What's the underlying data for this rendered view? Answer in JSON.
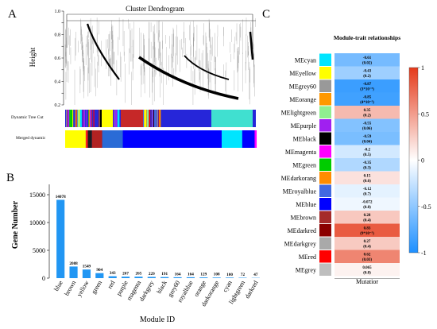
{
  "panels": {
    "a_label": "A",
    "b_label": "B",
    "c_label": "C"
  },
  "dendrogram": {
    "title": "Cluster Dendrogram",
    "ylabel": "Height",
    "yticks": [
      "1.0",
      "0.9",
      "0.8",
      "0.7",
      "0.6",
      "0.5",
      "0.4",
      "0.3",
      "0.2"
    ],
    "row1_label": "Dynamic Tree Cut",
    "row2_label": "Merged dynamic"
  },
  "chart_data": [
    {
      "type": "bar",
      "panel": "B",
      "xlabel": "Module ID",
      "ylabel": "Gene Number",
      "ylim": [
        0,
        16000
      ],
      "yticks": [
        0,
        5000,
        10000,
        15000
      ],
      "categories": [
        "blue",
        "brown",
        "yellow",
        "green",
        "red",
        "purple",
        "magenta",
        "darkgrey",
        "black",
        "grey60",
        "royalblue",
        "orange",
        "darkorange",
        "cyan",
        "lightgreen",
        "darkred"
      ],
      "values": [
        14078,
        2088,
        1549,
        904,
        343,
        267,
        265,
        229,
        191,
        164,
        164,
        129,
        108,
        100,
        72,
        47
      ],
      "bar_color": "#2196f3"
    },
    {
      "type": "heatmap",
      "panel": "C",
      "title": "Module-trait relationships",
      "xlabel": "Mutatior",
      "colorbar": {
        "min": -1,
        "max": 1,
        "ticks": [
          "1",
          "0.5",
          "0",
          "-0.5",
          "-1"
        ]
      },
      "rows": [
        {
          "module": "MEcyan",
          "swatch": "#00e5ff",
          "r": -0.61,
          "p": "(0.02)"
        },
        {
          "module": "MEyellow",
          "swatch": "#ffff00",
          "r": -0.43,
          "p": "(0.2)"
        },
        {
          "module": "MEgrey60",
          "swatch": "#999999",
          "r": -0.87,
          "p": "(3*10^-5)"
        },
        {
          "module": "MEorange",
          "swatch": "#ff9800",
          "r": -0.85,
          "p": "(4*10^-5)"
        },
        {
          "module": "MElightgreen",
          "swatch": "#90ee90",
          "r": 0.35,
          "p": "(0.2)"
        },
        {
          "module": "MEpurple",
          "swatch": "#a020f0",
          "r": -0.55,
          "p": "(0.06)"
        },
        {
          "module": "MEblack",
          "swatch": "#000000",
          "r": -0.59,
          "p": "(0.04)"
        },
        {
          "module": "MEmagenta",
          "swatch": "#ff00ff",
          "r": -0.2,
          "p": "(0.5)"
        },
        {
          "module": "MEgreen",
          "swatch": "#00cc00",
          "r": -0.35,
          "p": "(0.3)"
        },
        {
          "module": "MEdarkorang",
          "swatch": "#ff8c00",
          "r": 0.15,
          "p": "(0.6)"
        },
        {
          "module": "MEroyalblue",
          "swatch": "#4169e1",
          "r": -0.12,
          "p": "(0.7)"
        },
        {
          "module": "MEblue",
          "swatch": "#0000ff",
          "r": -0.072,
          "p": "(0.8)"
        },
        {
          "module": "MEbrown",
          "swatch": "#a52a2a",
          "r": 0.28,
          "p": "(0.4)"
        },
        {
          "module": "MEdarkred",
          "swatch": "#8b0000",
          "r": 0.83,
          "p": "(9*10^-5)"
        },
        {
          "module": "MEdarkgrey",
          "swatch": "#a9a9a9",
          "r": 0.27,
          "p": "(0.4)"
        },
        {
          "module": "MEred",
          "swatch": "#ff0000",
          "r": 0.62,
          "p": "(0.03)"
        },
        {
          "module": "MEgrey",
          "swatch": "#bebebe",
          "r": 0.065,
          "p": "(0.8)"
        }
      ]
    }
  ]
}
